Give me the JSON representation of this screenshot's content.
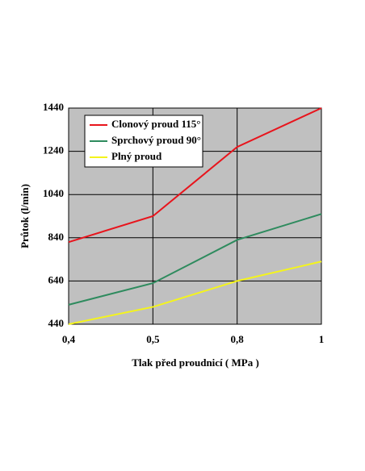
{
  "chart_data": {
    "type": "line",
    "categories": [
      "0,4",
      "0,5",
      "0,8",
      "1"
    ],
    "x_label": "Tlak před proudnicí  ( MPa )",
    "y_label": "Průtok (l/min)",
    "series": [
      {
        "name": "Clonový proud 115°",
        "color": "#e8141c",
        "values": [
          820,
          940,
          1260,
          1440
        ]
      },
      {
        "name": "Sprchový proud 90°",
        "color": "#2e8b5e",
        "values": [
          530,
          630,
          830,
          950
        ]
      },
      {
        "name": "Plný proud",
        "color": "#f4f41c",
        "values": [
          440,
          520,
          640,
          730
        ]
      }
    ],
    "ylim": [
      440,
      1440
    ],
    "yticks": [
      440,
      640,
      840,
      1040,
      1240,
      1440
    ],
    "grid": true,
    "legend": "top-left",
    "plot_background": "#c0c0c0"
  }
}
